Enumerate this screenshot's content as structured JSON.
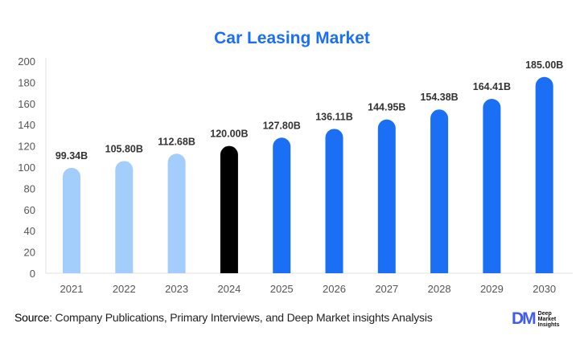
{
  "chart_data": {
    "type": "bar",
    "title": "Car Leasing Market",
    "categories": [
      "2021",
      "2022",
      "2023",
      "2024",
      "2025",
      "2026",
      "2027",
      "2028",
      "2029",
      "2030"
    ],
    "values": [
      99.34,
      105.8,
      112.68,
      120.0,
      127.8,
      136.11,
      144.95,
      154.38,
      164.41,
      185.0
    ],
    "data_labels": [
      "99.34B",
      "105.80B",
      "112.68B",
      "120.00B",
      "127.80B",
      "136.11B",
      "144.95B",
      "154.38B",
      "164.41B",
      "185.00B"
    ],
    "ylim": [
      0,
      200
    ],
    "yticks": [
      0,
      20,
      40,
      60,
      80,
      100,
      120,
      140,
      160,
      180,
      200
    ],
    "grid": false,
    "colors": {
      "historic": "#a3cdfb",
      "current": "#000000",
      "forecast": "#1a6ff5"
    },
    "bar_colors": [
      "historic",
      "historic",
      "historic",
      "current",
      "forecast",
      "forecast",
      "forecast",
      "forecast",
      "forecast",
      "forecast"
    ]
  },
  "footer": {
    "source_label": "Source",
    "source_text": ": Company Publications, Primary Interviews, and Deep Market insights Analysis",
    "logo_mark": "DM",
    "logo_text": [
      "Deep",
      "Market",
      "Insights"
    ]
  }
}
